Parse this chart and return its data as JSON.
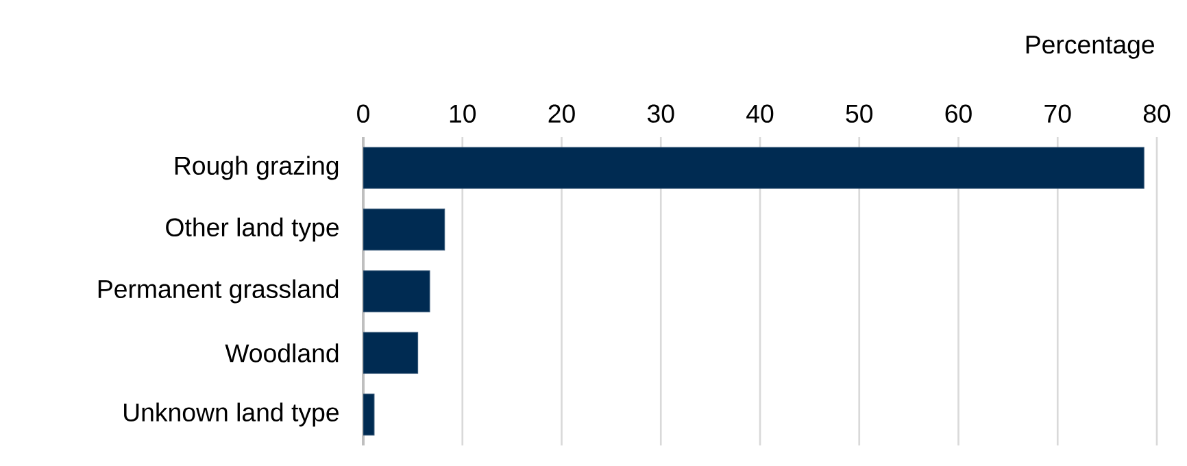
{
  "chart_data": {
    "type": "bar",
    "orientation": "horizontal",
    "xlabel": "Percentage",
    "categories": [
      "Rough grazing",
      "Other land type",
      "Permanent grassland",
      "Woodland",
      "Unknown land type"
    ],
    "values": [
      78.7,
      8.2,
      6.7,
      5.5,
      1.1
    ],
    "color": "#002b52",
    "xlim": [
      0,
      80
    ],
    "xticks": [
      0,
      10,
      20,
      30,
      40,
      50,
      60,
      70,
      80
    ],
    "grid": "x"
  }
}
